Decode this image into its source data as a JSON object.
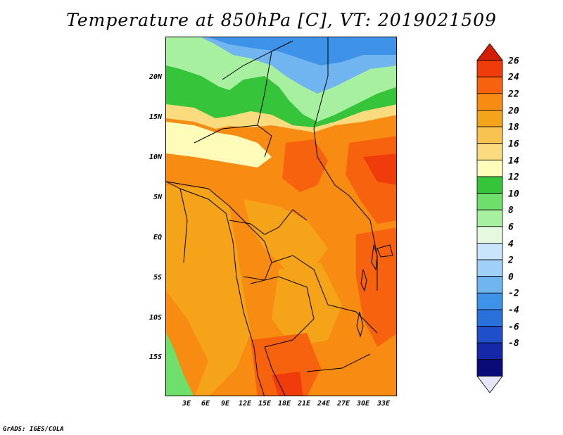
{
  "title": "Temperature at 850hPa [C], VT: 2019021509",
  "credit": "GrADS: IGES/COLA",
  "map": {
    "variable": "Temperature at 850hPa",
    "units": "C",
    "valid_time": "2019021509",
    "lon_range": [
      0,
      35
    ],
    "lat_range": [
      -20,
      25
    ],
    "lat_ticks": [
      "20N",
      "15N",
      "10N",
      "5N",
      "EQ",
      "5S",
      "10S",
      "15S"
    ],
    "lon_ticks": [
      "3E",
      "6E",
      "9E",
      "12E",
      "15E",
      "18E",
      "21E",
      "24E",
      "27E",
      "30E",
      "33E"
    ]
  },
  "colorbar": {
    "levels": [
      "26",
      "24",
      "22",
      "20",
      "18",
      "16",
      "14",
      "12",
      "10",
      "8",
      "6",
      "4",
      "2",
      "0",
      "-2",
      "-4",
      "-6",
      "-8"
    ],
    "colors": [
      "#d21d00",
      "#f03c0a",
      "#f7620f",
      "#f88b12",
      "#f5a318",
      "#f8c350",
      "#fadc7e",
      "#fefcb8",
      "#36c43a",
      "#6fdf6c",
      "#a7f09f",
      "#e5f8e0",
      "#c8e5fb",
      "#9fd0f8",
      "#70b4f0",
      "#3e93e8",
      "#2a71dc",
      "#1f4fcb",
      "#1428a8",
      "#0b0b78",
      "#e6e6fb"
    ]
  }
}
